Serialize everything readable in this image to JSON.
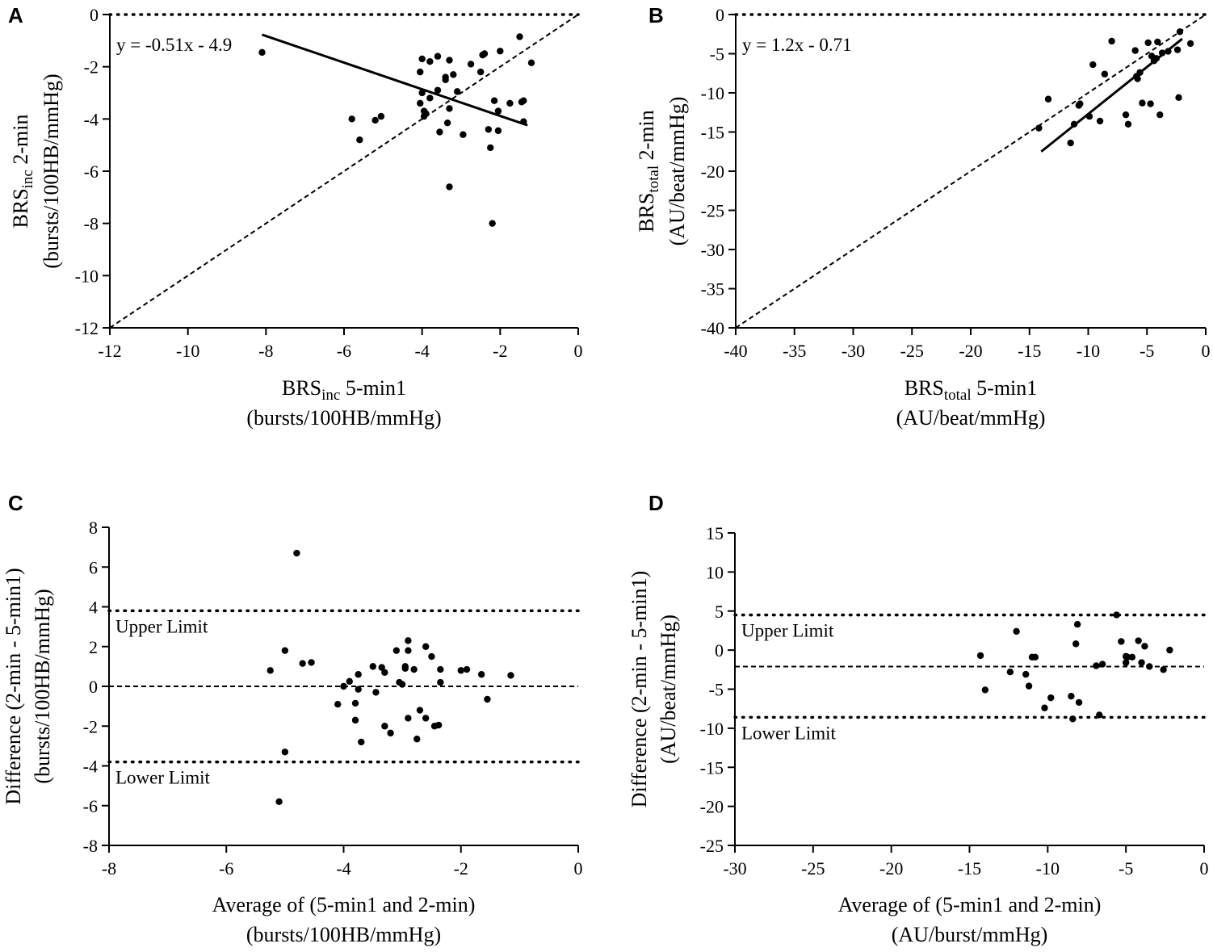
{
  "chart_data": [
    {
      "panel": "A",
      "type": "scatter",
      "title": "",
      "xlabel_main": "BRS",
      "xlabel_sub": "inc",
      "xlabel_rest": " 5-min1",
      "xlabel_units": "(bursts/100HB/mmHg)",
      "ylabel_main": "BRS",
      "ylabel_sub": "inc",
      "ylabel_rest": " 2-min",
      "ylabel_units": "(bursts/100HB/mmHg)",
      "xlim": [
        -12,
        0
      ],
      "ylim": [
        -12,
        0
      ],
      "xticks": [
        -12,
        -10,
        -8,
        -6,
        -4,
        -2,
        0
      ],
      "yticks": [
        -12,
        -10,
        -8,
        -6,
        -4,
        -2,
        0
      ],
      "equation": "y = -0.51x - 4.9",
      "fit_line": {
        "x": [
          -8.1,
          -1.3
        ],
        "y": [
          -0.77,
          -4.24
        ]
      },
      "identity_line": true,
      "zero_line": true,
      "points": [
        [
          -8.1,
          -1.45
        ],
        [
          -5.8,
          -4.0
        ],
        [
          -5.6,
          -4.8
        ],
        [
          -5.2,
          -4.05
        ],
        [
          -5.05,
          -3.9
        ],
        [
          -4.0,
          -1.7
        ],
        [
          -4.05,
          -2.2
        ],
        [
          -4.0,
          -3.0
        ],
        [
          -4.05,
          -3.4
        ],
        [
          -3.95,
          -3.7
        ],
        [
          -3.95,
          -3.9
        ],
        [
          -3.8,
          -1.8
        ],
        [
          -3.8,
          -3.2
        ],
        [
          -3.6,
          -1.6
        ],
        [
          -3.6,
          -2.9
        ],
        [
          -3.55,
          -4.5
        ],
        [
          -3.4,
          -2.4
        ],
        [
          -3.4,
          -2.5
        ],
        [
          -3.35,
          -4.15
        ],
        [
          -3.3,
          -1.75
        ],
        [
          -3.3,
          -3.6
        ],
        [
          -3.2,
          -2.3
        ],
        [
          -3.1,
          -2.95
        ],
        [
          -3.3,
          -6.6
        ],
        [
          -2.95,
          -4.6
        ],
        [
          -2.75,
          -1.9
        ],
        [
          -2.5,
          -2.2
        ],
        [
          -2.45,
          -1.55
        ],
        [
          -2.4,
          -1.5
        ],
        [
          -2.3,
          -4.4
        ],
        [
          -2.25,
          -5.1
        ],
        [
          -2.15,
          -3.3
        ],
        [
          -2.2,
          -8.0
        ],
        [
          -2.05,
          -4.45
        ],
        [
          -2.05,
          -3.7
        ],
        [
          -2.0,
          -1.4
        ],
        [
          -1.75,
          -3.4
        ],
        [
          -1.5,
          -0.85
        ],
        [
          -1.45,
          -3.35
        ],
        [
          -1.4,
          -3.3
        ],
        [
          -1.4,
          -4.1
        ],
        [
          -1.2,
          -1.85
        ],
        [
          -3.9,
          -3.8
        ]
      ]
    },
    {
      "panel": "B",
      "type": "scatter",
      "title": "",
      "xlabel_main": "BRS",
      "xlabel_sub": "total",
      "xlabel_rest": " 5-min1",
      "xlabel_units": "(AU/beat/mmHg)",
      "ylabel_main": "BRS",
      "ylabel_sub": "total",
      "ylabel_rest": " 2-min",
      "ylabel_units": "(AU/beat/mmHg)",
      "xlim": [
        -40,
        0
      ],
      "ylim": [
        -40,
        0
      ],
      "xticks": [
        -40,
        -35,
        -30,
        -25,
        -20,
        -15,
        -10,
        -5,
        0
      ],
      "yticks": [
        -40,
        -35,
        -30,
        -25,
        -20,
        -15,
        -10,
        -5,
        0
      ],
      "equation": "y = 1.2x - 0.71",
      "fit_line": {
        "x": [
          -14.0,
          -2.0
        ],
        "y": [
          -17.5,
          -3.1
        ]
      },
      "identity_line": true,
      "zero_line": true,
      "points": [
        [
          -14.2,
          -14.5
        ],
        [
          -13.4,
          -10.8
        ],
        [
          -11.5,
          -16.4
        ],
        [
          -11.2,
          -14.0
        ],
        [
          -10.8,
          -11.6
        ],
        [
          -10.7,
          -11.4
        ],
        [
          -9.9,
          -13.0
        ],
        [
          -9.6,
          -6.4
        ],
        [
          -9.0,
          -13.6
        ],
        [
          -8.6,
          -7.6
        ],
        [
          -8.0,
          -3.4
        ],
        [
          -6.8,
          -12.8
        ],
        [
          -6.6,
          -14.0
        ],
        [
          -6.0,
          -4.6
        ],
        [
          -5.9,
          -7.9
        ],
        [
          -5.8,
          -8.2
        ],
        [
          -5.6,
          -7.4
        ],
        [
          -5.4,
          -11.3
        ],
        [
          -4.9,
          -3.6
        ],
        [
          -4.7,
          -11.4
        ],
        [
          -4.6,
          -5.3
        ],
        [
          -4.4,
          -5.9
        ],
        [
          -4.2,
          -5.6
        ],
        [
          -4.1,
          -3.5
        ],
        [
          -3.9,
          -12.8
        ],
        [
          -3.7,
          -4.9
        ],
        [
          -3.2,
          -4.7
        ],
        [
          -2.4,
          -4.5
        ],
        [
          -2.3,
          -10.6
        ],
        [
          -2.2,
          -2.2
        ],
        [
          -1.3,
          -3.7
        ]
      ]
    },
    {
      "panel": "C",
      "type": "scatter",
      "title": "",
      "xlabel": "Average of (5-min1 and 2-min)",
      "xlabel_units": "(bursts/100HB/mmHg)",
      "ylabel": "Difference (2-min - 5-min1)",
      "ylabel_units": "(bursts/100HB/mmHg)",
      "xlim": [
        -8,
        0
      ],
      "ylim": [
        -8,
        8
      ],
      "xticks": [
        -8,
        -6,
        -4,
        -2,
        0
      ],
      "yticks": [
        -8,
        -6,
        -4,
        -2,
        0,
        2,
        4,
        6,
        8
      ],
      "mean_line": 0,
      "upper_limit": 3.8,
      "lower_limit": -3.8,
      "upper_label": "Upper Limit",
      "lower_label": "Lower Limit",
      "points": [
        [
          -4.8,
          6.7
        ],
        [
          -5.0,
          1.8
        ],
        [
          -5.25,
          0.8
        ],
        [
          -4.7,
          1.15
        ],
        [
          -4.55,
          1.2
        ],
        [
          -5.0,
          -3.3
        ],
        [
          -5.1,
          -5.8
        ],
        [
          -4.1,
          -0.9
        ],
        [
          -4.0,
          0.0
        ],
        [
          -3.9,
          0.25
        ],
        [
          -3.8,
          -0.85
        ],
        [
          -3.8,
          -1.7
        ],
        [
          -3.75,
          -0.15
        ],
        [
          -3.75,
          0.6
        ],
        [
          -3.7,
          -2.8
        ],
        [
          -3.5,
          1.0
        ],
        [
          -3.45,
          -0.3
        ],
        [
          -3.35,
          0.95
        ],
        [
          -3.3,
          -2.0
        ],
        [
          -3.3,
          0.7
        ],
        [
          -3.2,
          -2.35
        ],
        [
          -3.1,
          1.8
        ],
        [
          -3.05,
          0.2
        ],
        [
          -3.0,
          0.1
        ],
        [
          -2.95,
          0.9
        ],
        [
          -2.9,
          1.8
        ],
        [
          -2.9,
          2.3
        ],
        [
          -2.9,
          -1.6
        ],
        [
          -2.8,
          0.85
        ],
        [
          -2.75,
          -2.65
        ],
        [
          -2.7,
          -1.2
        ],
        [
          -2.6,
          2.0
        ],
        [
          -2.6,
          -1.6
        ],
        [
          -2.5,
          1.5
        ],
        [
          -2.45,
          -2.0
        ],
        [
          -2.38,
          -1.95
        ],
        [
          -2.35,
          0.85
        ],
        [
          -2.35,
          0.2
        ],
        [
          -2.0,
          0.8
        ],
        [
          -1.9,
          0.85
        ],
        [
          -1.65,
          0.6
        ],
        [
          -1.55,
          -0.65
        ],
        [
          -1.15,
          0.55
        ],
        [
          -2.95,
          1.0
        ]
      ]
    },
    {
      "panel": "D",
      "type": "scatter",
      "title": "",
      "xlabel": "Average of (5-min1 and 2-min)",
      "xlabel_units": "(AU/burst/mmHg)",
      "ylabel": "Difference (2-min - 5-min1)",
      "ylabel_units": "(AU/beat/mmHg)",
      "xlim": [
        -30,
        0
      ],
      "ylim": [
        -25,
        15
      ],
      "xticks": [
        -30,
        -25,
        -20,
        -15,
        -10,
        -5,
        0
      ],
      "yticks": [
        -25,
        -20,
        -15,
        -10,
        -5,
        0,
        5,
        10,
        15
      ],
      "mean_line": -2.1,
      "upper_limit": 4.5,
      "lower_limit": -8.6,
      "upper_label": "Upper Limit",
      "lower_label": "Lower Limit",
      "points": [
        [
          -14.3,
          -0.7
        ],
        [
          -14.0,
          -5.1
        ],
        [
          -12.4,
          -2.8
        ],
        [
          -12.0,
          2.4
        ],
        [
          -11.4,
          -3.1
        ],
        [
          -11.2,
          -4.6
        ],
        [
          -11.0,
          -0.9
        ],
        [
          -10.8,
          -0.9
        ],
        [
          -10.2,
          -7.4
        ],
        [
          -9.8,
          -6.1
        ],
        [
          -8.5,
          -5.9
        ],
        [
          -8.4,
          -8.8
        ],
        [
          -8.2,
          0.8
        ],
        [
          -8.1,
          3.3
        ],
        [
          -8.0,
          -6.7
        ],
        [
          -6.7,
          -8.3
        ],
        [
          -6.9,
          -2.0
        ],
        [
          -6.5,
          -1.8
        ],
        [
          -5.6,
          4.5
        ],
        [
          -5.3,
          1.1
        ],
        [
          -5.0,
          -1.6
        ],
        [
          -4.9,
          -0.9
        ],
        [
          -4.6,
          -0.9
        ],
        [
          -4.2,
          1.2
        ],
        [
          -4.0,
          -1.6
        ],
        [
          -3.8,
          0.5
        ],
        [
          -3.5,
          -2.1
        ],
        [
          -2.6,
          -2.5
        ],
        [
          -2.2,
          0.0
        ],
        [
          -5.0,
          -0.8
        ]
      ]
    }
  ]
}
